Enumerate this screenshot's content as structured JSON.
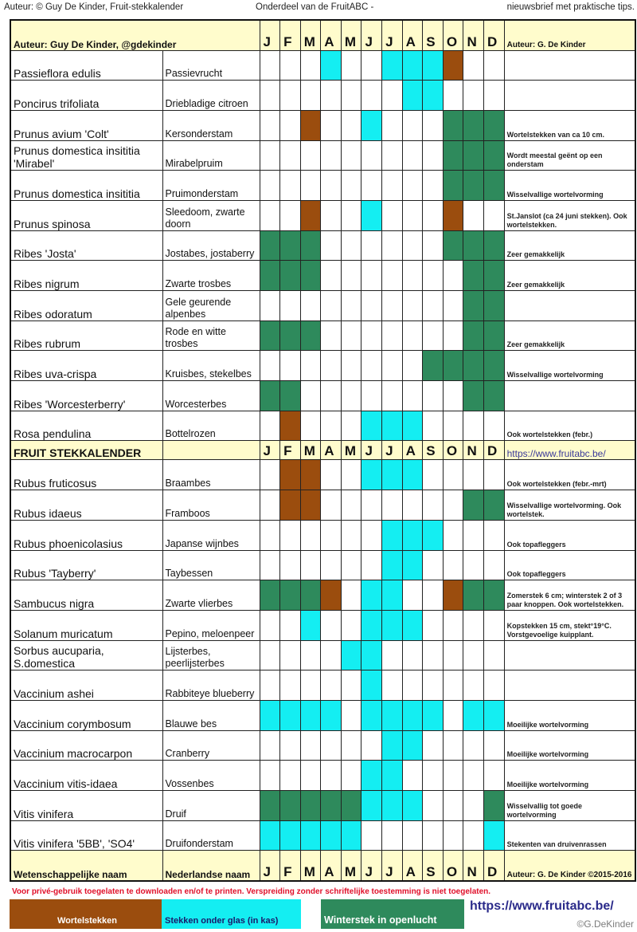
{
  "top": {
    "left": "Auteur: © Guy De Kinder, Fruit-stekkalender",
    "middle": "Onderdeel van de FruitABC -",
    "right": "nieuwsbrief met praktische tips."
  },
  "header": {
    "title": "Auteur: Guy De Kinder, @gdekinder",
    "notes": "Auteur: G. De Kinder"
  },
  "months": [
    "J",
    "F",
    "M",
    "A",
    "M",
    "J",
    "J",
    "A",
    "S",
    "O",
    "N",
    "D"
  ],
  "legend_codes": {
    "b": "Wortelstekken",
    "c": "Stekken onder glas (in kas)",
    "g": "Winterstek in openlucht"
  },
  "colors": {
    "b": "#9b4d0e",
    "c": "#14eef2",
    "g": "#2e8a5c",
    "header": "#fffccc"
  },
  "rows1": [
    {
      "sci": "Passieflora edulis",
      "nl": "Passievrucht",
      "months": "...c..cccb..",
      "note": ""
    },
    {
      "sci": "Poncirus trifoliata",
      "nl": "Driebladige citroen",
      "months": ".......cc...",
      "note": ""
    },
    {
      "sci": "Prunus avium 'Colt'",
      "nl": "Kersonderstam",
      "months": "..b..c...ggg",
      "note": "Wortelstekken van ca 10 cm."
    },
    {
      "sci": "Prunus domestica insititia 'Mirabel'",
      "nl": "Mirabelpruim",
      "months": ".........ggg",
      "note": "Wordt meestal geënt op een onderstam"
    },
    {
      "sci": "Prunus domestica insititia",
      "nl": "Pruimonderstam",
      "months": ".........ggg",
      "note": "Wisselvallige wortelvorming"
    },
    {
      "sci": "Prunus spinosa",
      "nl": "Sleedoom, zwarte doorn",
      "months": "..b..c...b..",
      "note": "St.Janslot (ca 24 juni stekken). Ook wortelstekken."
    },
    {
      "sci": "Ribes 'Josta'",
      "nl": "Jostabes, jostaberry",
      "months": "ggg......ggg",
      "note": "Zeer gemakkelijk"
    },
    {
      "sci": "Ribes nigrum",
      "nl": "Zwarte trosbes",
      "months": "ggg.......gg",
      "note": "Zeer gemakkelijk"
    },
    {
      "sci": "Ribes odoratum",
      "nl": "Gele geurende alpenbes",
      "months": "..........gg",
      "note": ""
    },
    {
      "sci": "Ribes rubrum",
      "nl": "Rode en witte trosbes",
      "months": "ggg.......gg",
      "note": "Zeer gemakkelijk"
    },
    {
      "sci": "Ribes uva-crispa",
      "nl": "Kruisbes, stekelbes",
      "months": "........gggg",
      "note": "Wisselvallige wortelvorming"
    },
    {
      "sci": "Ribes 'Worcesterberry'",
      "nl": "Worcesterbes",
      "months": "gg........gg",
      "note": ""
    },
    {
      "sci": "Rosa pendulina",
      "nl": "Bottelrozen",
      "months": ".b...ccc....",
      "note": "Ook wortelstekken (febr.)"
    }
  ],
  "mid_header": {
    "title": "FRUIT STEKKALENDER",
    "link": "https://www.fruitabc.be/"
  },
  "rows2": [
    {
      "sci": "Rubus fruticosus",
      "nl": "Braambes",
      "months": ".bb..ccc....",
      "note": "Ook wortelstekken (febr.-mrt)"
    },
    {
      "sci": "Rubus idaeus",
      "nl": "Framboos",
      "months": ".bb.......gg",
      "note": "Wisselvallige wortelvorming. Ook wortelstek."
    },
    {
      "sci": "Rubus phoenicolasius",
      "nl": "Japanse wijnbes",
      "months": "......ccc...",
      "note": "Ook topafleggers"
    },
    {
      "sci": "Rubus 'Tayberry'",
      "nl": "Taybessen",
      "months": "......cc....",
      "note": "Ook topafleggers"
    },
    {
      "sci": "Sambucus nigra",
      "nl": "Zwarte vlierbes",
      "months": "gggb.cc..bgg",
      "note": "Zomerstek 6 cm; winterstek 2 of 3 paar knoppen. Ook wortelstekken."
    },
    {
      "sci": "Solanum muricatum",
      "nl": "Pepino, meloenpeer",
      "months": "..c..ccc....",
      "note": "Kopstekken 15 cm, stekt°19°C. Vorstgevoelige kuipplant."
    },
    {
      "sci": "Sorbus aucuparia, S.domestica",
      "nl": "Lijsterbes, peerlijsterbes",
      "months": "....cc......",
      "note": ""
    },
    {
      "sci": "Vaccinium ashei",
      "nl": "Rabbiteye blueberry",
      "months": ".....c......",
      "note": ""
    },
    {
      "sci": "Vaccinium corymbosum",
      "nl": "Blauwe bes",
      "months": "cccc.cccc.cc",
      "note": "Moeilijke wortelvorming"
    },
    {
      "sci": "Vaccinium macrocarpon",
      "nl": "Cranberry",
      "months": "......cc....",
      "note": "Moeilijke wortelvorming"
    },
    {
      "sci": "Vaccinium vitis-idaea",
      "nl": "Vossenbes",
      "months": ".....cc.....",
      "note": "Moeilijke wortelvorming"
    },
    {
      "sci": "Vitis vinifera",
      "nl": "Druif",
      "months": "gggggccc...g",
      "note": "Wisselvallig tot goede wortelvorming"
    },
    {
      "sci": "Vitis vinifera '5BB', 'SO4'",
      "nl": "Druifonderstam",
      "months": "ccccc......c",
      "note": "Stekenten van druivenrassen"
    }
  ],
  "footer": {
    "sci": "Wetenschappelijke naam",
    "nl": "Nederlandse naam",
    "notes": "Auteur: G. De Kinder ©2015-2016"
  },
  "warning": "Voor privé-gebruik toegelaten te downloaden en/of te printen. Verspreiding zonder schriftelijke toestemming is niet toegelaten.",
  "legend": {
    "b": "Wortelstekken",
    "c": "Stekken onder glas (in kas)",
    "g": "Winterstek in openlucht",
    "link": "https://www.fruitabc.be/",
    "watermark": "©G.DeKinder"
  }
}
